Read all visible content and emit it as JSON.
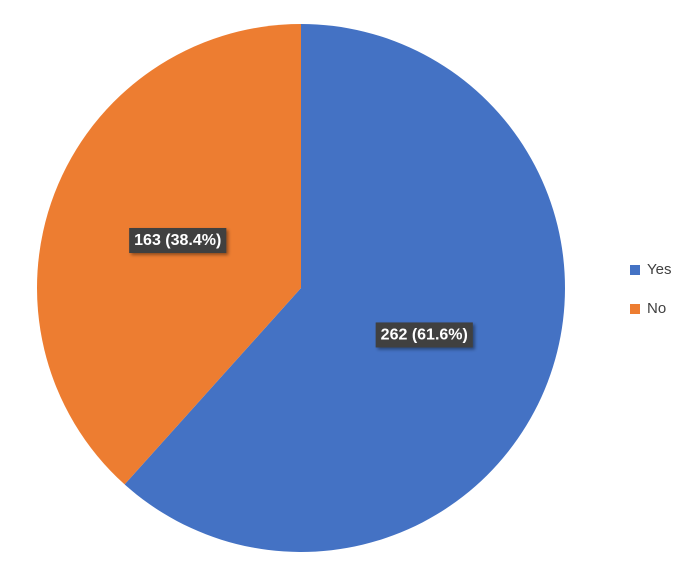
{
  "chart_data": {
    "type": "pie",
    "categories": [
      "Yes",
      "No"
    ],
    "values": [
      262,
      163
    ],
    "value_labels": [
      "262 (61.6%)",
      "163 (38.4%)"
    ],
    "colors": [
      "#4472c4",
      "#ed7d31"
    ],
    "legend": "right"
  }
}
